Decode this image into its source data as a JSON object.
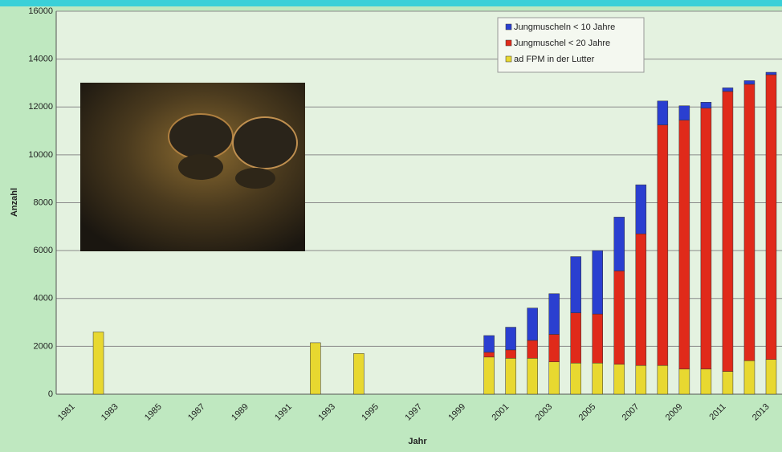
{
  "chart_data": {
    "type": "stacked_bar",
    "y_label": "Anzahl",
    "x_label": "Jahr",
    "categories": [
      "1981",
      null,
      "1983",
      null,
      "1985",
      null,
      "1987",
      null,
      "1989",
      null,
      "1991",
      null,
      "1993",
      null,
      "1995",
      null,
      "1997",
      null,
      "1999",
      null,
      "2001",
      null,
      "2003",
      null,
      "2005",
      null,
      "2007",
      null,
      "2009",
      null,
      "2011",
      null,
      "2013"
    ],
    "series": [
      {
        "name": "Jungmuscheln < 10 Jahre",
        "color": "#2a3fd0",
        "values": [
          null,
          null,
          null,
          null,
          null,
          null,
          null,
          null,
          null,
          null,
          null,
          null,
          null,
          null,
          null,
          null,
          null,
          null,
          null,
          700,
          950,
          1350,
          1700,
          2350,
          2650,
          2250,
          2050,
          1000,
          600,
          250,
          150,
          150,
          100
        ]
      },
      {
        "name": "Jungmuschel < 20 Jahre",
        "color": "#e02a1a",
        "values": [
          null,
          null,
          null,
          null,
          null,
          null,
          null,
          null,
          null,
          null,
          null,
          null,
          null,
          null,
          null,
          null,
          null,
          null,
          null,
          200,
          350,
          750,
          1150,
          2100,
          2050,
          3900,
          5500,
          10050,
          10400,
          10900,
          11700,
          11550,
          11900
        ]
      },
      {
        "name": "ad FPM in der Lutter",
        "color": "#e8d830",
        "values": [
          null,
          2600,
          null,
          null,
          null,
          null,
          null,
          null,
          null,
          null,
          null,
          2150,
          null,
          1700,
          null,
          null,
          null,
          null,
          null,
          1550,
          1500,
          1500,
          1350,
          1300,
          1300,
          1250,
          1200,
          1200,
          1050,
          1050,
          950,
          1400,
          1450
        ]
      }
    ],
    "ylim": [
      0,
      16000
    ],
    "yticks": [
      0,
      2000,
      4000,
      6000,
      8000,
      10000,
      12000,
      14000,
      16000
    ],
    "grid": true
  }
}
